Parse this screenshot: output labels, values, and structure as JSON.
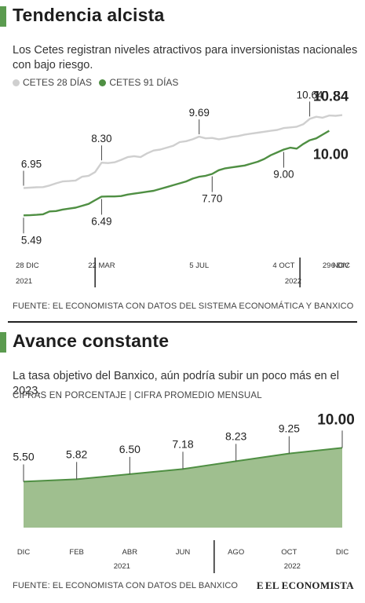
{
  "section1": {
    "title": "Tendencia alcista",
    "subtitle": "Los Cetes registran niveles atractivos para inversionistas nacionales con bajo riesgo.",
    "legend": [
      {
        "label": "CETES 28 DÍAS",
        "color": "#cfcfcf"
      },
      {
        "label": "CETES 91 DÍAS",
        "color": "#4f8f43"
      }
    ],
    "source": "FUENTE: EL ECONOMISTA CON DATOS DEL SISTEMA ECONOMÁTICA Y BANXICO"
  },
  "section2": {
    "title": "Avance constante",
    "subtitle": "La tasa objetivo del Banxico, aún podría subir un poco más en el 2023.",
    "meta": "CIFRAS EN PORCENTAJE | CIFRA PROMEDIO MENSUAL",
    "source": "FUENTE: EL ECONOMISTA CON DATOS DEL BANXICO"
  },
  "brand": {
    "mark": "E",
    "name": "EL ECONOMISTA"
  },
  "colors": {
    "accent": "#5b9b4f",
    "cetes28": "#cfcfcf",
    "cetes91": "#4f8f43",
    "area_fill": "#9fbf8f",
    "area_stroke": "#4f8f43"
  },
  "chart_data": [
    {
      "type": "line",
      "title": "Tendencia alcista",
      "x_axis_ticks": [
        {
          "label": "28 DIC",
          "t": 0
        },
        {
          "label": "22 MAR",
          "t": 12
        },
        {
          "label": "5 JUL",
          "t": 27
        },
        {
          "label": "4 OCT",
          "t": 40
        },
        {
          "label": "29 NOV",
          "t": 48
        },
        {
          "label": "6 DIC",
          "t": 49
        }
      ],
      "year_labels": [
        {
          "label": "2021",
          "t": 0
        },
        {
          "label": "2022",
          "t": 40
        }
      ],
      "ylim": [
        5,
        11.2
      ],
      "series": [
        {
          "name": "CETES 28 DÍAS",
          "color": "#cfcfcf",
          "points": [
            [
              0,
              6.95
            ],
            [
              1,
              6.97
            ],
            [
              2,
              6.99
            ],
            [
              3,
              7.0
            ],
            [
              4,
              7.08
            ],
            [
              5,
              7.2
            ],
            [
              6,
              7.3
            ],
            [
              7,
              7.32
            ],
            [
              8,
              7.35
            ],
            [
              9,
              7.55
            ],
            [
              10,
              7.6
            ],
            [
              11,
              7.8
            ],
            [
              12,
              8.3
            ],
            [
              13,
              8.28
            ],
            [
              14,
              8.32
            ],
            [
              15,
              8.45
            ],
            [
              16,
              8.6
            ],
            [
              17,
              8.65
            ],
            [
              18,
              8.6
            ],
            [
              19,
              8.8
            ],
            [
              20,
              8.95
            ],
            [
              21,
              9.0
            ],
            [
              22,
              9.1
            ],
            [
              23,
              9.2
            ],
            [
              24,
              9.4
            ],
            [
              25,
              9.45
            ],
            [
              26,
              9.55
            ],
            [
              27,
              9.69
            ],
            [
              28,
              9.6
            ],
            [
              29,
              9.62
            ],
            [
              30,
              9.55
            ],
            [
              31,
              9.6
            ],
            [
              32,
              9.68
            ],
            [
              33,
              9.72
            ],
            [
              34,
              9.8
            ],
            [
              35,
              9.85
            ],
            [
              36,
              9.9
            ],
            [
              37,
              9.95
            ],
            [
              38,
              10.0
            ],
            [
              39,
              10.05
            ],
            [
              40,
              10.15
            ],
            [
              41,
              10.18
            ],
            [
              42,
              10.22
            ],
            [
              43,
              10.35
            ],
            [
              44,
              10.64
            ],
            [
              45,
              10.75
            ],
            [
              46,
              10.7
            ],
            [
              47,
              10.82
            ],
            [
              48,
              10.8
            ],
            [
              49,
              10.84
            ]
          ],
          "annotations": [
            {
              "t": 0,
              "value": 6.95,
              "label": "6.95"
            },
            {
              "t": 12,
              "value": 8.3,
              "label": "8.30"
            },
            {
              "t": 27,
              "value": 9.69,
              "label": "9.69"
            },
            {
              "t": 44,
              "value": 10.64,
              "label": "10.64"
            },
            {
              "t": 49,
              "value": 10.84,
              "label": "10.84",
              "bold": true
            }
          ]
        },
        {
          "name": "CETES 91 DÍAS",
          "color": "#4f8f43",
          "points": [
            [
              0,
              5.49
            ],
            [
              1,
              5.5
            ],
            [
              2,
              5.52
            ],
            [
              3,
              5.55
            ],
            [
              4,
              5.7
            ],
            [
              5,
              5.72
            ],
            [
              6,
              5.8
            ],
            [
              7,
              5.85
            ],
            [
              8,
              5.9
            ],
            [
              9,
              6.0
            ],
            [
              10,
              6.1
            ],
            [
              11,
              6.3
            ],
            [
              12,
              6.49
            ],
            [
              13,
              6.5
            ],
            [
              14,
              6.5
            ],
            [
              15,
              6.52
            ],
            [
              16,
              6.6
            ],
            [
              17,
              6.65
            ],
            [
              18,
              6.7
            ],
            [
              19,
              6.75
            ],
            [
              20,
              6.8
            ],
            [
              21,
              6.9
            ],
            [
              22,
              7.0
            ],
            [
              23,
              7.1
            ],
            [
              24,
              7.2
            ],
            [
              25,
              7.3
            ],
            [
              26,
              7.45
            ],
            [
              27,
              7.55
            ],
            [
              28,
              7.6
            ],
            [
              29,
              7.7
            ],
            [
              30,
              7.9
            ],
            [
              31,
              8.0
            ],
            [
              32,
              8.05
            ],
            [
              33,
              8.1
            ],
            [
              34,
              8.15
            ],
            [
              35,
              8.25
            ],
            [
              36,
              8.35
            ],
            [
              37,
              8.5
            ],
            [
              38,
              8.7
            ],
            [
              39,
              8.85
            ],
            [
              40,
              9.0
            ],
            [
              41,
              9.1
            ],
            [
              42,
              9.05
            ],
            [
              43,
              9.3
            ],
            [
              44,
              9.5
            ],
            [
              45,
              9.6
            ],
            [
              46,
              9.8
            ],
            [
              47,
              10.0
            ]
          ],
          "annotations": [
            {
              "t": 0,
              "value": 5.49,
              "label": "5.49"
            },
            {
              "t": 12,
              "value": 6.49,
              "label": "6.49"
            },
            {
              "t": 29,
              "value": 7.7,
              "label": "7.70"
            },
            {
              "t": 40,
              "value": 9.0,
              "label": "9.00"
            },
            {
              "t": 47,
              "value": 10.0,
              "label": "10.00",
              "bold": true
            }
          ]
        }
      ]
    },
    {
      "type": "area",
      "title": "Avance constante",
      "categories": [
        "DIC",
        "FEB",
        "ABR",
        "JUN",
        "AGO",
        "OCT",
        "DIC"
      ],
      "year_labels": [
        {
          "label": "2021",
          "index": 2
        },
        {
          "label": "2022",
          "index": 5
        }
      ],
      "ylim": [
        0,
        11
      ],
      "values": [
        5.5,
        5.82,
        6.5,
        7.18,
        8.23,
        9.25,
        10.0
      ],
      "labels": [
        "5.50",
        "5.82",
        "6.50",
        "7.18",
        "8.23",
        "9.25",
        "10.00"
      ],
      "bold_last": true,
      "color": "#9fbf8f"
    }
  ]
}
